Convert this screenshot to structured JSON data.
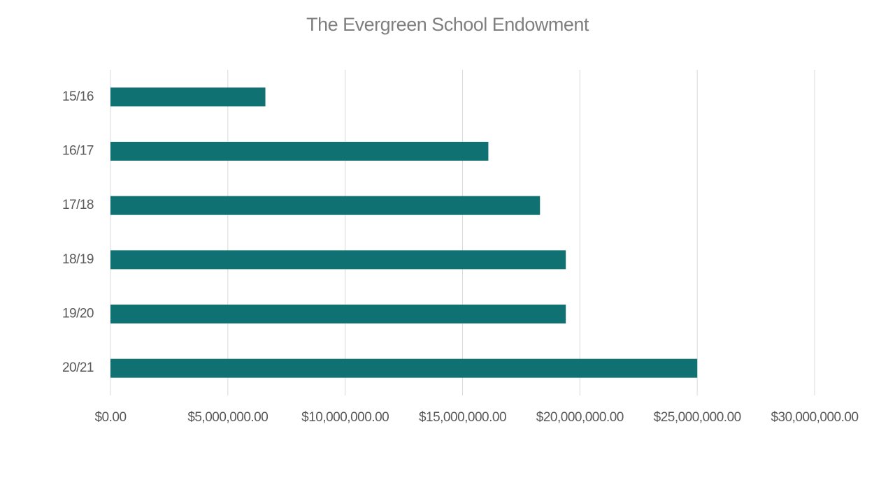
{
  "chart_data": {
    "type": "hbar",
    "title": "The Evergreen School Endowment",
    "categories": [
      "15/16",
      "16/17",
      "17/18",
      "18/19",
      "19/20",
      "20/21"
    ],
    "values": [
      6600000,
      16100000,
      18300000,
      19400000,
      19400000,
      25000000
    ],
    "color": "#107173",
    "xlim": [
      0,
      30000000
    ],
    "xticks": [
      {
        "value": 0,
        "label": "$0.00"
      },
      {
        "value": 5000000,
        "label": "$5,000,000.00"
      },
      {
        "value": 10000000,
        "label": "$10,000,000.00"
      },
      {
        "value": 15000000,
        "label": "$15,000,000.00"
      },
      {
        "value": 20000000,
        "label": "$20,000,000.00"
      },
      {
        "value": 25000000,
        "label": "$25,000,000.00"
      },
      {
        "value": 30000000,
        "label": "$30,000,000.00"
      }
    ],
    "grid": true
  }
}
